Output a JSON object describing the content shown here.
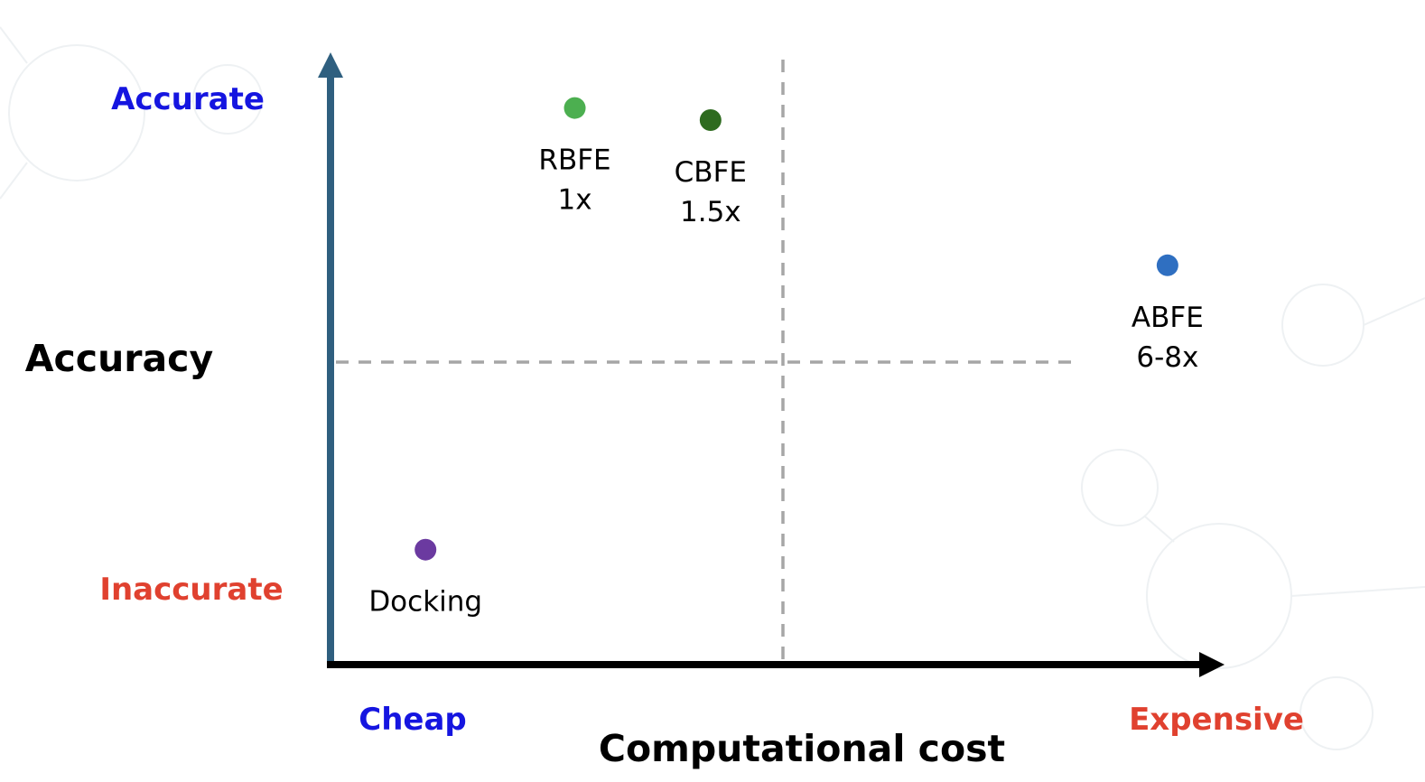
{
  "chart_data": {
    "type": "scatter",
    "xlabel": "Computational cost",
    "ylabel": "Accuracy",
    "x_low_label": "Cheap",
    "x_high_label": "Expensive",
    "y_high_label": "Accurate",
    "y_low_label": "Inaccurate",
    "xlim": [
      0,
      1
    ],
    "ylim": [
      0,
      1
    ],
    "x_divider": 0.5,
    "y_divider": 0.5,
    "grid": false,
    "legend": "none",
    "points": [
      {
        "name": "RBFE",
        "cost_label": "1x",
        "x": 0.27,
        "y": 0.92,
        "color": "#4caf50"
      },
      {
        "name": "CBFE",
        "cost_label": "1.5x",
        "x": 0.42,
        "y": 0.9,
        "color": "#2e6b1f"
      },
      {
        "name": "ABFE",
        "cost_label": "6-8x",
        "x": 0.925,
        "y": 0.66,
        "color": "#2f6fc1"
      },
      {
        "name": "Docking",
        "cost_label": "",
        "x": 0.105,
        "y": 0.19,
        "color": "#6b3aa0"
      }
    ]
  },
  "colors": {
    "y_axis": "#2f5f7f",
    "x_axis": "#000000",
    "divider": "#a6a6a6",
    "accurate": "#1515e0",
    "inaccurate": "#e0412f",
    "cheap": "#1515e0",
    "expensive": "#e0412f",
    "background_motif": "#eef1f3"
  }
}
